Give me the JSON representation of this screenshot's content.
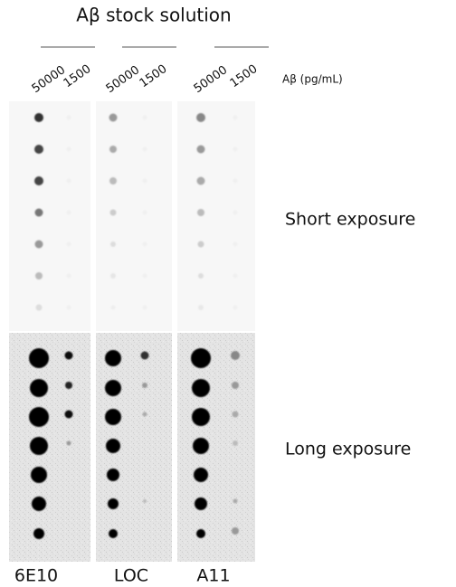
{
  "title": "Aβ stock solution",
  "unit_label": "Aβ (pg/mL)",
  "panels": [
    {
      "label": "6E10",
      "concentrations": [
        "50000",
        "1500"
      ]
    },
    {
      "label": "LOC",
      "concentrations": [
        "50000",
        "1500"
      ]
    },
    {
      "label": "A11",
      "concentrations": [
        "50000",
        "1500"
      ]
    }
  ],
  "exposures": [
    "Short exposure",
    "Long exposure"
  ]
}
